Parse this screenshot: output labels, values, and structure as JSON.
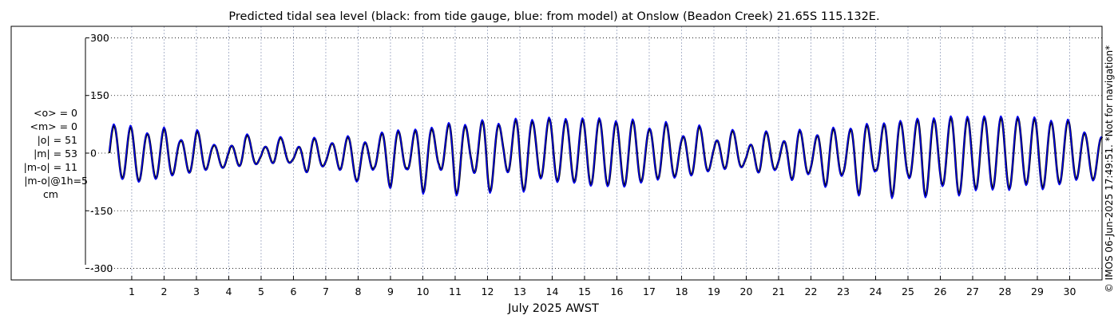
{
  "chart_data": {
    "type": "line",
    "title": "Predicted tidal sea level (black: from tide gauge, blue: from model) at Onslow (Beadon Creek) 21.65S 115.132E.",
    "xlabel": "July 2025 AWST",
    "ylabel": "",
    "ylim": [
      -330,
      330
    ],
    "xlim": [
      0.31,
      31.0
    ],
    "y_ticks": [
      300,
      150,
      0,
      -150,
      -300
    ],
    "x_ticks": [
      1,
      2,
      3,
      4,
      5,
      6,
      7,
      8,
      9,
      10,
      11,
      12,
      13,
      14,
      15,
      16,
      17,
      18,
      19,
      20,
      21,
      22,
      23,
      24,
      25,
      26,
      27,
      28,
      29,
      30
    ],
    "grid": true,
    "stats_lines": [
      "<o> = 0",
      "<m> = 0",
      "|o| = 51",
      "|m| = 53",
      "|m-o| = 11",
      "|m-o|@1h=5",
      "cm"
    ],
    "side_note": "© IMOS 06-Jun-2025 17:49:51. *Not for navigation*",
    "colors": {
      "observed": "#000000",
      "model": "#0000ff",
      "grid": "#9aa4c0"
    },
    "series": [
      {
        "name": "tide gauge",
        "color": "#000000",
        "daily_extremes_cm": [
          {
            "day": 0.5,
            "high": 72,
            "low": -55
          },
          {
            "day": 1.0,
            "high": 68,
            "low": -82
          },
          {
            "day": 1.5,
            "high": 50,
            "low": -62
          },
          {
            "day": 2.0,
            "high": 65,
            "low": -70
          },
          {
            "day": 2.5,
            "high": 32,
            "low": -45
          },
          {
            "day": 3.0,
            "high": 60,
            "low": -55
          },
          {
            "day": 3.5,
            "high": 22,
            "low": -35
          },
          {
            "day": 4.0,
            "high": 12,
            "low": -40
          },
          {
            "day": 4.5,
            "high": 55,
            "low": -30
          },
          {
            "day": 5.0,
            "high": 5,
            "low": -28
          },
          {
            "day": 5.5,
            "high": 52,
            "low": -25
          },
          {
            "day": 6.0,
            "high": 0,
            "low": -25
          },
          {
            "day": 6.5,
            "high": 52,
            "low": -55
          },
          {
            "day": 7.0,
            "high": 8,
            "low": -30
          },
          {
            "day": 7.5,
            "high": 55,
            "low": -45
          },
          {
            "day": 8.0,
            "high": 22,
            "low": -75
          },
          {
            "day": 8.5,
            "high": 35,
            "low": -40
          },
          {
            "day": 9.0,
            "high": 72,
            "low": -90
          },
          {
            "day": 9.5,
            "high": 42,
            "low": -40
          },
          {
            "day": 10.0,
            "high": 75,
            "low": -105
          },
          {
            "day": 10.5,
            "high": 55,
            "low": -35
          },
          {
            "day": 11.0,
            "high": 90,
            "low": -115
          },
          {
            "day": 11.5,
            "high": 60,
            "low": -38
          },
          {
            "day": 12.0,
            "high": 95,
            "low": -115
          },
          {
            "day": 12.5,
            "high": 65,
            "low": -30
          },
          {
            "day": 13.0,
            "high": 95,
            "low": -110
          },
          {
            "day": 13.5,
            "high": 80,
            "low": -60
          },
          {
            "day": 14.0,
            "high": 92,
            "low": -75
          },
          {
            "day": 14.5,
            "high": 85,
            "low": -70
          },
          {
            "day": 15.0,
            "high": 88,
            "low": -85
          },
          {
            "day": 15.5,
            "high": 88,
            "low": -80
          },
          {
            "day": 16.0,
            "high": 80,
            "low": -90
          },
          {
            "day": 16.5,
            "high": 85,
            "low": -80
          },
          {
            "day": 17.0,
            "high": 62,
            "low": -70
          },
          {
            "day": 17.5,
            "high": 80,
            "low": -65
          },
          {
            "day": 18.0,
            "high": 40,
            "low": -60
          },
          {
            "day": 18.5,
            "high": 75,
            "low": -55
          },
          {
            "day": 19.0,
            "high": 25,
            "low": -42
          },
          {
            "day": 19.5,
            "high": 70,
            "low": -40
          },
          {
            "day": 20.0,
            "high": 5,
            "low": -35
          },
          {
            "day": 20.5,
            "high": 70,
            "low": -55
          },
          {
            "day": 21.0,
            "high": 10,
            "low": -40
          },
          {
            "day": 21.5,
            "high": 75,
            "low": -75
          },
          {
            "day": 22.0,
            "high": 25,
            "low": -50
          },
          {
            "day": 22.5,
            "high": 80,
            "low": -90
          },
          {
            "day": 23.0,
            "high": 40,
            "low": -55
          },
          {
            "day": 23.5,
            "high": 90,
            "low": -110
          },
          {
            "day": 24.0,
            "high": 55,
            "low": -45
          },
          {
            "day": 24.5,
            "high": 95,
            "low": -115
          },
          {
            "day": 25.0,
            "high": 70,
            "low": -60
          },
          {
            "day": 25.5,
            "high": 100,
            "low": -115
          },
          {
            "day": 26.0,
            "high": 80,
            "low": -80
          },
          {
            "day": 26.5,
            "high": 100,
            "low": -110
          },
          {
            "day": 27.0,
            "high": 88,
            "low": -95
          },
          {
            "day": 27.5,
            "high": 95,
            "low": -90
          },
          {
            "day": 28.0,
            "high": 92,
            "low": -100
          },
          {
            "day": 28.5,
            "high": 92,
            "low": -75
          },
          {
            "day": 29.0,
            "high": 90,
            "low": -95
          },
          {
            "day": 29.5,
            "high": 80,
            "low": -85
          },
          {
            "day": 30.0,
            "high": 85,
            "low": -70
          },
          {
            "day": 30.5,
            "high": 50,
            "low": -65
          },
          {
            "day": 31.0,
            "high": 40,
            "low": -75
          }
        ]
      },
      {
        "name": "model",
        "color": "#0000ff",
        "daily_extremes_cm": [
          {
            "day": 0.5,
            "high": 76,
            "low": -57
          },
          {
            "day": 1.0,
            "high": 72,
            "low": -85
          },
          {
            "day": 1.5,
            "high": 52,
            "low": -64
          },
          {
            "day": 2.0,
            "high": 68,
            "low": -73
          },
          {
            "day": 2.5,
            "high": 34,
            "low": -46
          },
          {
            "day": 3.0,
            "high": 63,
            "low": -57
          },
          {
            "day": 3.5,
            "high": 24,
            "low": -36
          },
          {
            "day": 4.0,
            "high": 13,
            "low": -41
          },
          {
            "day": 4.5,
            "high": 58,
            "low": -31
          },
          {
            "day": 5.0,
            "high": 6,
            "low": -29
          },
          {
            "day": 5.5,
            "high": 55,
            "low": -26
          },
          {
            "day": 6.0,
            "high": 1,
            "low": -26
          },
          {
            "day": 6.5,
            "high": 55,
            "low": -57
          },
          {
            "day": 7.0,
            "high": 9,
            "low": -31
          },
          {
            "day": 7.5,
            "high": 58,
            "low": -47
          },
          {
            "day": 8.0,
            "high": 24,
            "low": -78
          },
          {
            "day": 8.5,
            "high": 37,
            "low": -42
          },
          {
            "day": 9.0,
            "high": 76,
            "low": -93
          },
          {
            "day": 9.5,
            "high": 44,
            "low": -42
          },
          {
            "day": 10.0,
            "high": 79,
            "low": -109
          },
          {
            "day": 10.5,
            "high": 58,
            "low": -37
          },
          {
            "day": 11.0,
            "high": 94,
            "low": -119
          },
          {
            "day": 11.5,
            "high": 63,
            "low": -40
          },
          {
            "day": 12.0,
            "high": 99,
            "low": -119
          },
          {
            "day": 12.5,
            "high": 68,
            "low": -32
          },
          {
            "day": 13.0,
            "high": 99,
            "low": -114
          },
          {
            "day": 13.5,
            "high": 84,
            "low": -63
          },
          {
            "day": 14.0,
            "high": 96,
            "low": -78
          },
          {
            "day": 14.5,
            "high": 89,
            "low": -73
          },
          {
            "day": 15.0,
            "high": 92,
            "low": -88
          },
          {
            "day": 15.5,
            "high": 92,
            "low": -83
          },
          {
            "day": 16.0,
            "high": 84,
            "low": -93
          },
          {
            "day": 16.5,
            "high": 89,
            "low": -83
          },
          {
            "day": 17.0,
            "high": 65,
            "low": -73
          },
          {
            "day": 17.5,
            "high": 84,
            "low": -68
          },
          {
            "day": 18.0,
            "high": 42,
            "low": -63
          },
          {
            "day": 18.5,
            "high": 79,
            "low": -57
          },
          {
            "day": 19.0,
            "high": 26,
            "low": -44
          },
          {
            "day": 19.5,
            "high": 73,
            "low": -42
          },
          {
            "day": 20.0,
            "high": 6,
            "low": -36
          },
          {
            "day": 20.5,
            "high": 73,
            "low": -57
          },
          {
            "day": 21.0,
            "high": 11,
            "low": -42
          },
          {
            "day": 21.5,
            "high": 79,
            "low": -78
          },
          {
            "day": 22.0,
            "high": 26,
            "low": -52
          },
          {
            "day": 22.5,
            "high": 84,
            "low": -94
          },
          {
            "day": 23.0,
            "high": 42,
            "low": -57
          },
          {
            "day": 23.5,
            "high": 94,
            "low": -114
          },
          {
            "day": 24.0,
            "high": 58,
            "low": -47
          },
          {
            "day": 24.5,
            "high": 99,
            "low": -119
          },
          {
            "day": 25.0,
            "high": 73,
            "low": -63
          },
          {
            "day": 25.5,
            "high": 104,
            "low": -119
          },
          {
            "day": 26.0,
            "high": 84,
            "low": -83
          },
          {
            "day": 26.5,
            "high": 104,
            "low": -114
          },
          {
            "day": 27.0,
            "high": 92,
            "low": -99
          },
          {
            "day": 27.5,
            "high": 99,
            "low": -94
          },
          {
            "day": 28.0,
            "high": 96,
            "low": -104
          },
          {
            "day": 28.5,
            "high": 96,
            "low": -78
          },
          {
            "day": 29.0,
            "high": 94,
            "low": -99
          },
          {
            "day": 29.5,
            "high": 84,
            "low": -88
          },
          {
            "day": 30.0,
            "high": 89,
            "low": -73
          },
          {
            "day": 30.5,
            "high": 52,
            "low": -68
          },
          {
            "day": 31.0,
            "high": 42,
            "low": -78
          }
        ]
      }
    ]
  }
}
